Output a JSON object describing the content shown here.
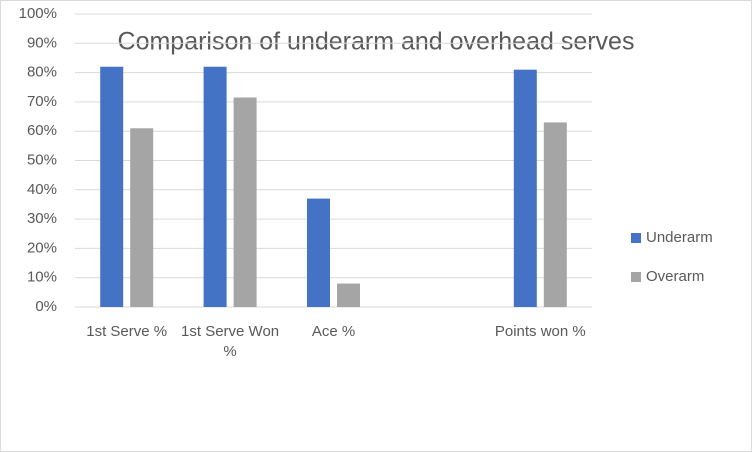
{
  "chart_data": {
    "type": "bar",
    "title": "Comparison of underarm and overhead serves",
    "categories": [
      "1st Serve %",
      "1st Serve Won %",
      "Ace %",
      null,
      "Points won %"
    ],
    "series": [
      {
        "name": "Underarm",
        "color": "#4472c4",
        "values": [
          82,
          82,
          37,
          null,
          81
        ]
      },
      {
        "name": "Overarm",
        "color": "#a5a5a5",
        "values": [
          61,
          71.5,
          8,
          null,
          63
        ]
      }
    ],
    "ylim": [
      0,
      100
    ],
    "yticks": [
      {
        "value": 0,
        "label": "0%"
      },
      {
        "value": 10,
        "label": "10%"
      },
      {
        "value": 20,
        "label": "20%"
      },
      {
        "value": 30,
        "label": "30%"
      },
      {
        "value": 40,
        "label": "40%"
      },
      {
        "value": 50,
        "label": "50%"
      },
      {
        "value": 60,
        "label": "60%"
      },
      {
        "value": 70,
        "label": "70%"
      },
      {
        "value": 80,
        "label": "80%"
      },
      {
        "value": 90,
        "label": "90%"
      },
      {
        "value": 100,
        "label": "100%"
      }
    ],
    "grid": true,
    "legend": "right"
  }
}
